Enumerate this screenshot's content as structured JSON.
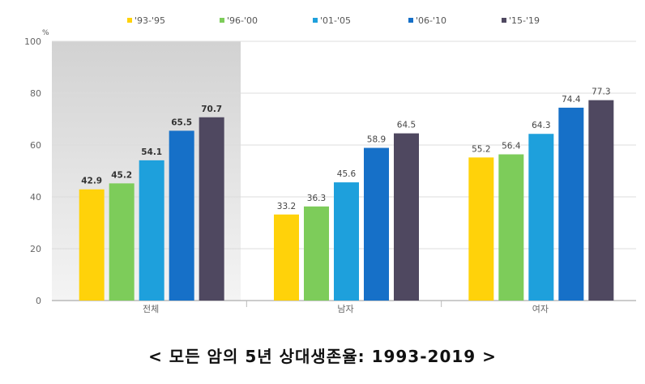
{
  "chart_data": {
    "type": "bar",
    "title": "< 모든 암의 5년 상대생존율: 1993-2019 >",
    "unit": "%",
    "categories": [
      "전체",
      "남자",
      "여자"
    ],
    "ylim": [
      0,
      100
    ],
    "yticks": [
      0,
      20,
      40,
      60,
      80,
      100
    ],
    "legend_position": "top",
    "series": [
      {
        "name": "'93-'95",
        "color": "#FFD20A",
        "values": [
          42.9,
          33.2,
          55.2
        ]
      },
      {
        "name": "'96-'00",
        "color": "#7DCC5A",
        "values": [
          45.2,
          36.3,
          56.4
        ]
      },
      {
        "name": "'01-'05",
        "color": "#1EA0DC",
        "values": [
          54.1,
          45.6,
          64.3
        ]
      },
      {
        "name": "'06-'10",
        "color": "#1670C8",
        "values": [
          65.5,
          58.9,
          74.4
        ]
      },
      {
        "name": "'15-'19",
        "color": "#4F4860",
        "values": [
          70.7,
          64.5,
          77.3
        ]
      }
    ],
    "labels": [
      [
        "42.9",
        "33.2",
        "55.2"
      ],
      [
        "45.2",
        "36.3",
        "56.4"
      ],
      [
        "54.1",
        "45.6",
        "64.3"
      ],
      [
        "65.5",
        "58.9",
        "74.4"
      ],
      [
        "70.7",
        "64.5",
        "77.3"
      ]
    ],
    "highlight_category_index": 0
  }
}
